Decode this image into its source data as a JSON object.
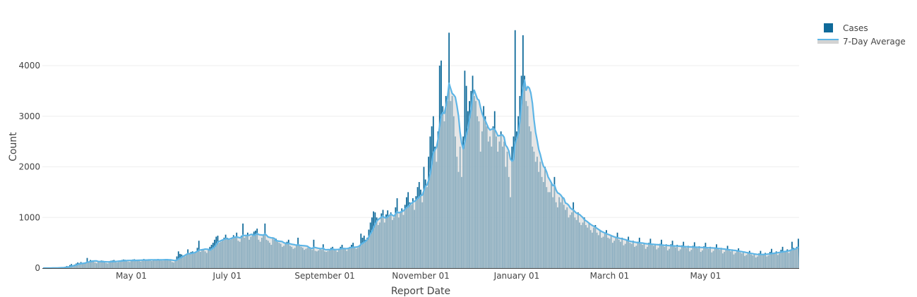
{
  "chart_data": {
    "type": "bar",
    "title": "",
    "xlabel": "Report Date",
    "ylabel": "Count",
    "ylim": [
      0,
      4900
    ],
    "start_date": "2020-03-06",
    "end_date": "2021-06-29",
    "y_ticks": [
      0,
      1000,
      2000,
      3000,
      4000
    ],
    "x_ticks": [
      {
        "label": "May 01",
        "day_index": 56
      },
      {
        "label": "July 01",
        "day_index": 117
      },
      {
        "label": "September 01",
        "day_index": 179
      },
      {
        "label": "November 01",
        "day_index": 240
      },
      {
        "label": "January 01",
        "day_index": 301
      },
      {
        "label": "March 01",
        "day_index": 360
      },
      {
        "label": "May 01",
        "day_index": 421
      }
    ],
    "grid": true,
    "legend_position": "top-right",
    "series": [
      {
        "name": "Cases",
        "type": "bar",
        "color": "#0f6a9a"
      },
      {
        "name": "7-Day Average",
        "type": "area-line",
        "window": 7,
        "line_color": "#5db5e6",
        "fill_color": "#d3d3d3"
      }
    ],
    "cases": [
      0,
      0,
      1,
      0,
      2,
      1,
      3,
      4,
      6,
      5,
      10,
      12,
      8,
      15,
      25,
      40,
      35,
      60,
      80,
      55,
      70,
      90,
      110,
      100,
      120,
      95,
      85,
      110,
      200,
      130,
      160,
      150,
      140,
      110,
      95,
      120,
      130,
      150,
      145,
      125,
      100,
      90,
      130,
      145,
      150,
      160,
      140,
      110,
      120,
      150,
      160,
      170,
      165,
      155,
      130,
      120,
      150,
      170,
      175,
      160,
      165,
      140,
      130,
      160,
      180,
      170,
      165,
      175,
      150,
      140,
      160,
      175,
      170,
      180,
      165,
      150,
      145,
      170,
      180,
      175,
      160,
      150,
      120,
      110,
      160,
      230,
      330,
      280,
      270,
      250,
      230,
      280,
      370,
      300,
      320,
      330,
      290,
      310,
      400,
      540,
      320,
      350,
      370,
      330,
      300,
      380,
      420,
      460,
      500,
      560,
      620,
      640,
      500,
      520,
      540,
      600,
      660,
      600,
      580,
      560,
      600,
      650,
      620,
      700,
      540,
      520,
      640,
      880,
      600,
      640,
      700,
      560,
      620,
      660,
      720,
      740,
      780,
      560,
      520,
      600,
      640,
      880,
      560,
      540,
      500,
      460,
      600,
      560,
      580,
      520,
      500,
      480,
      420,
      440,
      500,
      520,
      560,
      440,
      420,
      380,
      400,
      440,
      600,
      460,
      420,
      400,
      360,
      380,
      400,
      420,
      380,
      360,
      560,
      340,
      330,
      350,
      380,
      360,
      470,
      330,
      320,
      340,
      360,
      400,
      420,
      380,
      350,
      320,
      360,
      420,
      460,
      400,
      380,
      340,
      380,
      420,
      460,
      500,
      420,
      380,
      400,
      450,
      680,
      600,
      640,
      560,
      600,
      760,
      900,
      1000,
      1120,
      1100,
      1000,
      850,
      900,
      1080,
      1150,
      900,
      1060,
      1140,
      1020,
      1100,
      950,
      1000,
      1200,
      1380,
      1000,
      1100,
      1180,
      1050,
      1250,
      1400,
      1500,
      1300,
      1250,
      1380,
      1150,
      1420,
      1600,
      1700,
      1550,
      1300,
      2000,
      1750,
      1600,
      2200,
      2600,
      2800,
      3000,
      2400,
      2100,
      2700,
      4000,
      4100,
      3200,
      2900,
      3400,
      3300,
      4650,
      3300,
      3400,
      3000,
      2600,
      2200,
      1900,
      2400,
      1800,
      2600,
      3900,
      3600,
      3100,
      3300,
      3500,
      3800,
      3400,
      3300,
      3000,
      2900,
      2300,
      2700,
      3200,
      3000,
      2800,
      2500,
      2600,
      2400,
      2800,
      3100,
      2600,
      2300,
      2500,
      2700,
      2400,
      2500,
      2000,
      2300,
      1800,
      1400,
      2400,
      2600,
      4700,
      2700,
      3000,
      3400,
      3800,
      4600,
      3800,
      3300,
      3200,
      2800,
      2700,
      2400,
      2300,
      2100,
      2200,
      1900,
      2100,
      1800,
      1700,
      2000,
      1600,
      1500,
      1500,
      1700,
      1400,
      1800,
      1300,
      1200,
      1400,
      1300,
      1400,
      1250,
      1150,
      1200,
      1000,
      1050,
      1100,
      1300,
      1000,
      950,
      1100,
      900,
      850,
      900,
      1000,
      850,
      800,
      900,
      750,
      700,
      800,
      850,
      700,
      650,
      750,
      600,
      620,
      700,
      750,
      600,
      580,
      650,
      500,
      540,
      620,
      700,
      560,
      520,
      600,
      450,
      480,
      550,
      620,
      500,
      480,
      540,
      420,
      440,
      520,
      600,
      480,
      460,
      500,
      380,
      420,
      500,
      580,
      460,
      440,
      480,
      370,
      400,
      480,
      560,
      440,
      420,
      470,
      350,
      380,
      470,
      540,
      430,
      410,
      460,
      340,
      370,
      450,
      520,
      420,
      400,
      440,
      330,
      360,
      440,
      510,
      410,
      390,
      430,
      320,
      350,
      430,
      500,
      400,
      380,
      420,
      310,
      340,
      410,
      470,
      380,
      360,
      400,
      290,
      320,
      380,
      440,
      350,
      330,
      370,
      270,
      300,
      340,
      390,
      310,
      290,
      330,
      240,
      260,
      300,
      340,
      270,
      250,
      290,
      210,
      230,
      290,
      340,
      270,
      260,
      300,
      230,
      250,
      320,
      380,
      300,
      290,
      330,
      260,
      290,
      360,
      420,
      330,
      320,
      370,
      300,
      340,
      520,
      400,
      380,
      420,
      580
    ]
  }
}
